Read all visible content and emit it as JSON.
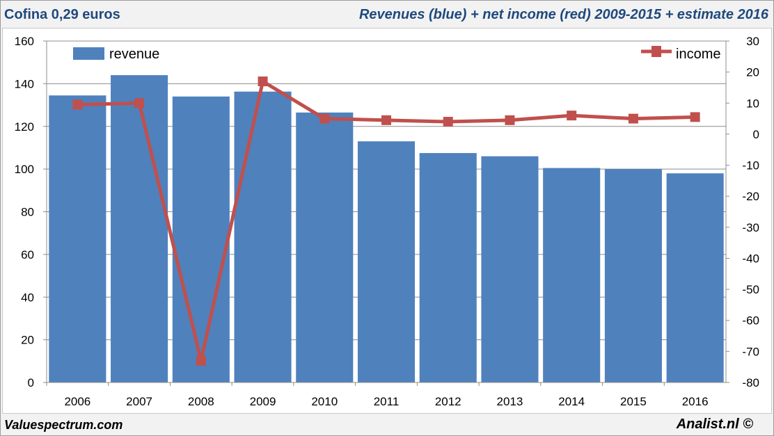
{
  "header": {
    "left_title": "Cofina 0,29 euros",
    "right_title": "Revenues (blue) + net income (red) 2009-2015 + estimate 2016"
  },
  "footer": {
    "left_credit": "Valuespectrum.com",
    "right_credit": "Analist.nl ©"
  },
  "colors": {
    "revenue_bar": "#4f81bd",
    "income_line": "#c0504d",
    "title_text": "#1f497d"
  },
  "chart_data": {
    "type": "bar",
    "categories": [
      "2006",
      "2007",
      "2008",
      "2009",
      "2010",
      "2011",
      "2012",
      "2013",
      "2014",
      "2015",
      "2016"
    ],
    "series": [
      {
        "name": "revenue",
        "type": "bar",
        "axis": "left",
        "values": [
          134.5,
          144,
          134,
          136.3,
          126.5,
          113,
          107.5,
          106,
          100.5,
          100,
          98
        ]
      },
      {
        "name": "income",
        "type": "line",
        "axis": "right",
        "marker": "square",
        "values": [
          9.5,
          10,
          -73,
          17,
          5,
          4.5,
          4,
          4.5,
          6,
          5,
          5.5
        ]
      }
    ],
    "left_axis": {
      "ylim": [
        0,
        160
      ],
      "ticks": [
        "0",
        "20",
        "40",
        "60",
        "80",
        "100",
        "120",
        "140",
        "160"
      ]
    },
    "right_axis": {
      "ylim": [
        -80,
        30
      ],
      "ticks": [
        "-80",
        "-70",
        "-60",
        "-50",
        "-40",
        "-30",
        "-20",
        "-10",
        "0",
        "10",
        "20",
        "30"
      ]
    },
    "grid": true,
    "legend": [
      {
        "label": "revenue",
        "placement": "top-left"
      },
      {
        "label": "income",
        "placement": "top-right"
      }
    ]
  }
}
